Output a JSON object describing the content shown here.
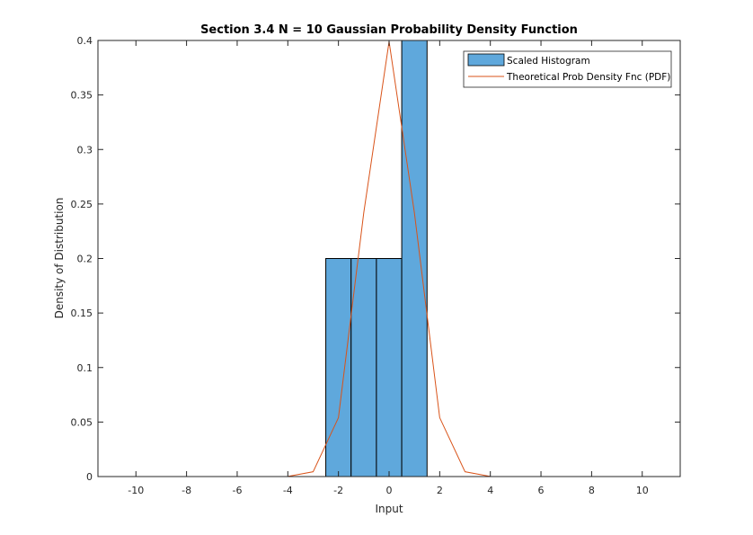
{
  "chart_data": {
    "type": "bar",
    "title": "Section 3.4 N = 10 Gaussian Probability Density Function",
    "xlabel": "Input",
    "ylabel": "Density of Distribution",
    "xlim": [
      -11.5,
      11.5
    ],
    "ylim": [
      0,
      0.4
    ],
    "xticks": [
      -10,
      -8,
      -6,
      -4,
      -2,
      0,
      2,
      4,
      6,
      8,
      10
    ],
    "yticks": [
      0,
      0.05,
      0.1,
      0.15,
      0.2,
      0.25,
      0.3,
      0.35,
      0.4
    ],
    "xtick_labels": [
      "-10",
      "-8",
      "-6",
      "-4",
      "-2",
      "0",
      "2",
      "4",
      "6",
      "8",
      "10"
    ],
    "ytick_labels": [
      "0",
      "0.05",
      "0.1",
      "0.15",
      "0.2",
      "0.25",
      "0.3",
      "0.35",
      "0.4"
    ],
    "grid": false,
    "legend_position": "top-right",
    "histogram": {
      "name": "Scaled Histogram",
      "color": "#5fa8dc",
      "edge_color": "#000000",
      "bins": [
        {
          "x0": -2.5,
          "x1": -1.5,
          "value": 0.2
        },
        {
          "x0": -1.5,
          "x1": -0.5,
          "value": 0.2
        },
        {
          "x0": -0.5,
          "x1": 0.5,
          "value": 0.2
        },
        {
          "x0": 0.5,
          "x1": 1.5,
          "value": 0.4
        }
      ]
    },
    "pdf": {
      "name": "Theoretical Prob Density Fnc (PDF)",
      "color": "#d95319",
      "x": [
        -5.5,
        -5,
        -4,
        -3,
        -2,
        -1,
        0,
        1,
        2,
        3,
        4,
        5,
        5.5
      ],
      "y": [
        0.0,
        0.0,
        0.0001,
        0.0044,
        0.054,
        0.242,
        0.399,
        0.242,
        0.054,
        0.0044,
        0.0001,
        0.0,
        0.0
      ]
    }
  }
}
